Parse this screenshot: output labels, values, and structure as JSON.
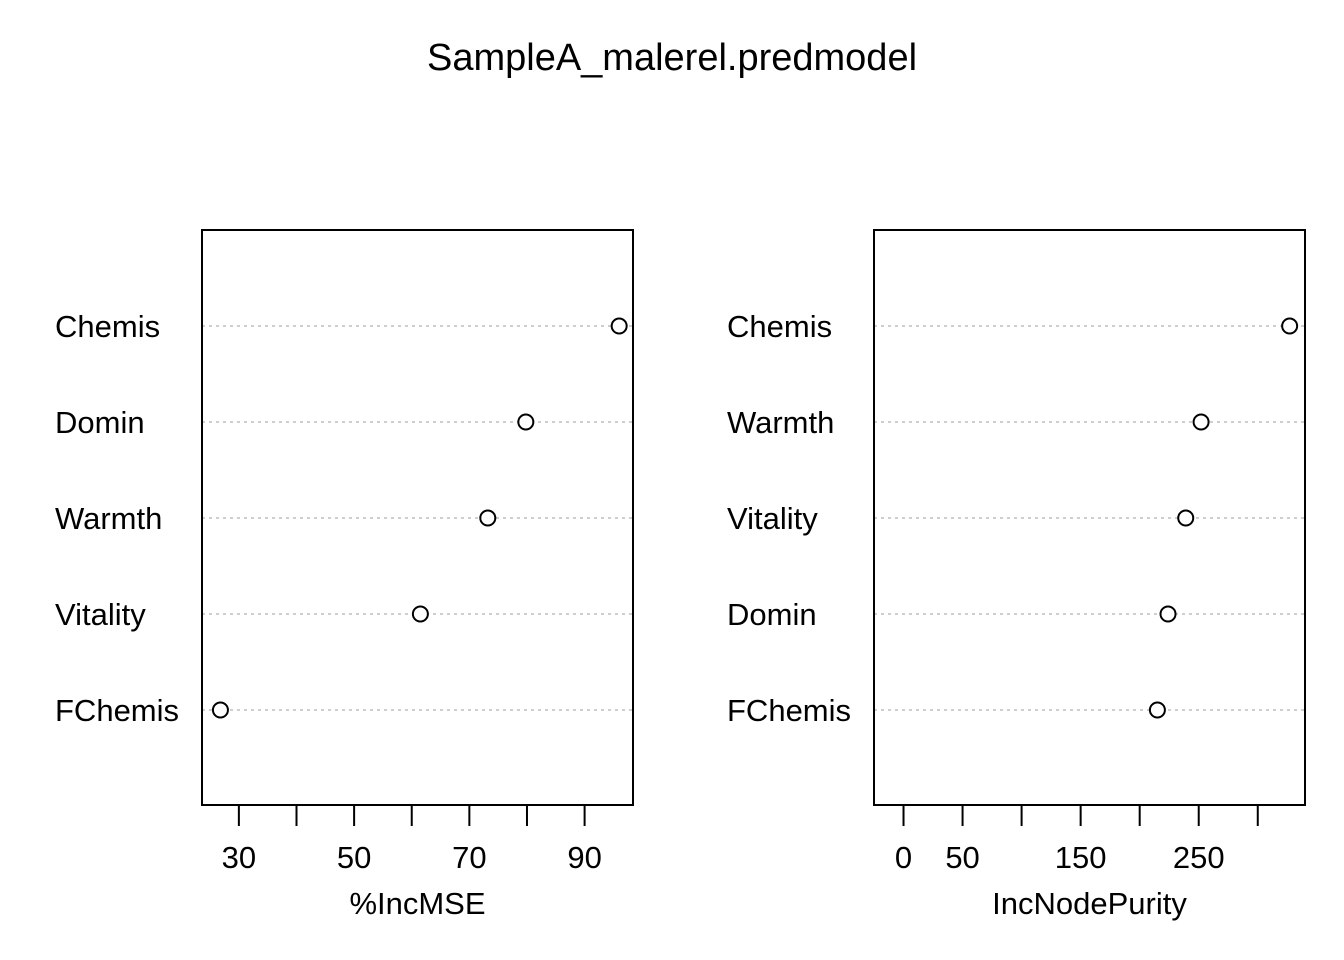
{
  "title": "SampleA_malerel.predmodel",
  "chart_data": [
    {
      "type": "scatter",
      "subtype": "dotchart",
      "xlabel": "%IncMSE",
      "ylabel": "",
      "xlim": [
        23.6,
        98.4
      ],
      "xticks": [
        30,
        40,
        50,
        60,
        70,
        80,
        90
      ],
      "xtick_labels": [
        "30",
        "",
        "50",
        "",
        "70",
        "",
        "90"
      ],
      "categories": [
        "Chemis",
        "Domin",
        "Warmth",
        "Vitality",
        "FChemis"
      ],
      "values": [
        96.0,
        79.8,
        73.2,
        61.5,
        26.8
      ],
      "grid": "dotted horizontal",
      "style": {
        "point_color": "#000000",
        "grid_color": "#bebebe"
      }
    },
    {
      "type": "scatter",
      "subtype": "dotchart",
      "xlabel": "IncNodePurity",
      "ylabel": "",
      "xlim": [
        -25,
        340
      ],
      "xticks": [
        0,
        50,
        100,
        150,
        200,
        250,
        300
      ],
      "xtick_labels": [
        "0",
        "50",
        "",
        "150",
        "",
        "250",
        ""
      ],
      "categories": [
        "Chemis",
        "Warmth",
        "Vitality",
        "Domin",
        "FChemis"
      ],
      "values": [
        327,
        252,
        239,
        224,
        215
      ],
      "grid": "dotted horizontal",
      "style": {
        "point_color": "#000000",
        "grid_color": "#bebebe"
      }
    }
  ]
}
